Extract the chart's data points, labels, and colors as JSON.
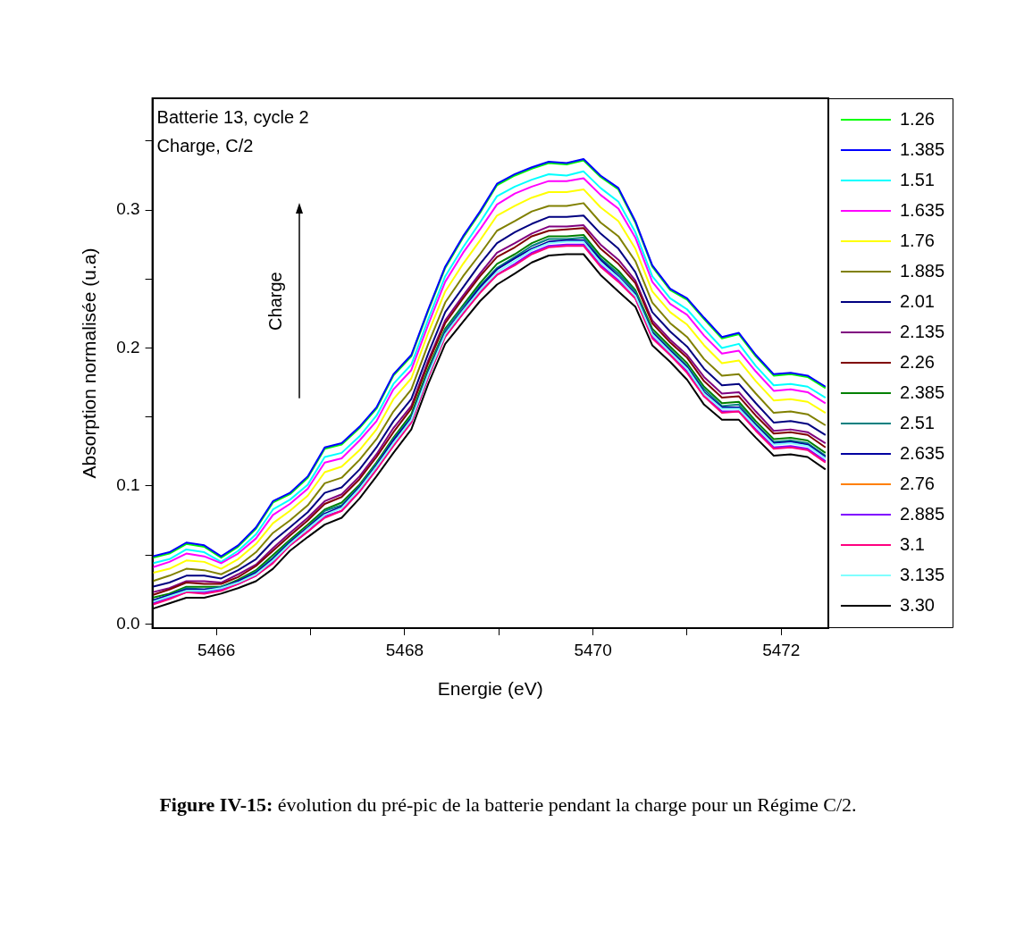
{
  "chart_data": {
    "type": "line",
    "xlabel": "Energie (eV)",
    "ylabel": "Absorption normalisée (u.a)",
    "annotations": [
      "Batterie 13, cycle 2",
      "Charge, C/2",
      "Charge",
      "Figure IV-15: évolution du pré-pic de la batterie pendant la charge pour un Régime C/2."
    ],
    "x": [
      5465.32,
      5465.5,
      5465.68,
      5465.87,
      5466.05,
      5466.23,
      5466.42,
      5466.6,
      5466.78,
      5466.97,
      5467.15,
      5467.33,
      5467.52,
      5467.7,
      5467.88,
      5468.07,
      5468.25,
      5468.43,
      5468.62,
      5468.8,
      5468.98,
      5469.17,
      5469.35,
      5469.53,
      5469.72,
      5469.9,
      5470.08,
      5470.27,
      5470.45,
      5470.63,
      5470.82,
      5471.0,
      5471.18,
      5471.37,
      5471.55,
      5471.73,
      5471.92,
      5472.1,
      5472.28,
      5472.47
    ],
    "xlim": [
      5465.32,
      5472.5
    ],
    "xticks": [
      5466,
      {
        "value": 5467,
        "label": null
      },
      5468,
      {
        "value": 5469,
        "label": null
      },
      5470,
      {
        "value": 5471,
        "label": null
      },
      5472
    ],
    "ylim": [
      -0.003,
      0.381
    ],
    "yticks": [
      {
        "value": 0,
        "label": "0.0"
      },
      {
        "value": 0.05,
        "label": null
      },
      0.1,
      {
        "value": 0.15,
        "label": null
      },
      0.2,
      {
        "value": 0.25,
        "label": null
      },
      0.3,
      {
        "value": 0.35,
        "label": null
      }
    ],
    "legend": "right",
    "marker": "none",
    "line_style": "solid",
    "series": [
      {
        "name": "1.26",
        "color": "#00ff00",
        "values": [
          0.048,
          0.051,
          0.058,
          0.056,
          0.048,
          0.056,
          0.069,
          0.088,
          0.094,
          0.106,
          0.127,
          0.13,
          0.142,
          0.156,
          0.18,
          0.194,
          0.227,
          0.258,
          0.28,
          0.298,
          0.318,
          0.325,
          0.33,
          0.334,
          0.333,
          0.336,
          0.324,
          0.315,
          0.291,
          0.259,
          0.242,
          0.235,
          0.221,
          0.207,
          0.21,
          0.194,
          0.18,
          0.181,
          0.179,
          0.171
        ]
      },
      {
        "name": "1.385",
        "color": "#0000ff",
        "values": [
          0.049,
          0.052,
          0.059,
          0.057,
          0.049,
          0.057,
          0.07,
          0.089,
          0.095,
          0.107,
          0.128,
          0.131,
          0.143,
          0.157,
          0.181,
          0.195,
          0.228,
          0.259,
          0.281,
          0.299,
          0.319,
          0.326,
          0.331,
          0.335,
          0.334,
          0.337,
          0.325,
          0.316,
          0.292,
          0.26,
          0.243,
          0.236,
          0.222,
          0.208,
          0.211,
          0.195,
          0.181,
          0.182,
          0.18,
          0.172
        ]
      },
      {
        "name": "1.51",
        "color": "#00ffff",
        "values": [
          0.044,
          0.047,
          0.054,
          0.052,
          0.045,
          0.053,
          0.065,
          0.083,
          0.09,
          0.101,
          0.121,
          0.124,
          0.136,
          0.151,
          0.174,
          0.188,
          0.221,
          0.252,
          0.273,
          0.291,
          0.31,
          0.317,
          0.322,
          0.326,
          0.325,
          0.328,
          0.316,
          0.306,
          0.284,
          0.252,
          0.236,
          0.228,
          0.214,
          0.2,
          0.203,
          0.187,
          0.173,
          0.174,
          0.172,
          0.164
        ]
      },
      {
        "name": "1.635",
        "color": "#ff00ff",
        "values": [
          0.041,
          0.045,
          0.051,
          0.049,
          0.044,
          0.051,
          0.062,
          0.079,
          0.087,
          0.098,
          0.117,
          0.12,
          0.133,
          0.147,
          0.17,
          0.184,
          0.217,
          0.248,
          0.269,
          0.286,
          0.304,
          0.312,
          0.317,
          0.321,
          0.321,
          0.323,
          0.311,
          0.301,
          0.28,
          0.248,
          0.232,
          0.224,
          0.209,
          0.196,
          0.198,
          0.183,
          0.169,
          0.17,
          0.168,
          0.16
        ]
      },
      {
        "name": "1.76",
        "color": "#ffff00",
        "values": [
          0.037,
          0.04,
          0.046,
          0.045,
          0.04,
          0.047,
          0.058,
          0.073,
          0.082,
          0.093,
          0.11,
          0.114,
          0.126,
          0.141,
          0.163,
          0.178,
          0.211,
          0.241,
          0.261,
          0.278,
          0.296,
          0.303,
          0.309,
          0.313,
          0.313,
          0.315,
          0.302,
          0.292,
          0.272,
          0.241,
          0.226,
          0.217,
          0.202,
          0.189,
          0.191,
          0.176,
          0.162,
          0.163,
          0.161,
          0.153
        ]
      },
      {
        "name": "1.885",
        "color": "#808000",
        "values": [
          0.031,
          0.035,
          0.04,
          0.039,
          0.036,
          0.042,
          0.052,
          0.066,
          0.075,
          0.086,
          0.102,
          0.106,
          0.119,
          0.134,
          0.154,
          0.17,
          0.203,
          0.233,
          0.252,
          0.268,
          0.285,
          0.292,
          0.299,
          0.303,
          0.303,
          0.305,
          0.291,
          0.281,
          0.263,
          0.233,
          0.218,
          0.208,
          0.192,
          0.18,
          0.181,
          0.167,
          0.153,
          0.154,
          0.152,
          0.144
        ]
      },
      {
        "name": "2.01",
        "color": "#000080",
        "values": [
          0.027,
          0.03,
          0.035,
          0.035,
          0.033,
          0.039,
          0.047,
          0.06,
          0.07,
          0.081,
          0.095,
          0.099,
          0.112,
          0.128,
          0.147,
          0.163,
          0.196,
          0.226,
          0.244,
          0.261,
          0.276,
          0.284,
          0.29,
          0.295,
          0.295,
          0.296,
          0.283,
          0.272,
          0.255,
          0.226,
          0.212,
          0.201,
          0.185,
          0.173,
          0.174,
          0.16,
          0.146,
          0.147,
          0.145,
          0.137
        ]
      },
      {
        "name": "2.135",
        "color": "#800080",
        "values": [
          0.023,
          0.026,
          0.031,
          0.031,
          0.03,
          0.036,
          0.043,
          0.055,
          0.066,
          0.077,
          0.089,
          0.094,
          0.107,
          0.123,
          0.142,
          0.158,
          0.191,
          0.22,
          0.238,
          0.254,
          0.269,
          0.276,
          0.283,
          0.288,
          0.288,
          0.289,
          0.275,
          0.264,
          0.249,
          0.22,
          0.206,
          0.195,
          0.179,
          0.167,
          0.168,
          0.154,
          0.14,
          0.141,
          0.139,
          0.131
        ]
      },
      {
        "name": "2.26",
        "color": "#800000",
        "values": [
          0.021,
          0.025,
          0.03,
          0.029,
          0.029,
          0.034,
          0.042,
          0.053,
          0.064,
          0.075,
          0.087,
          0.092,
          0.105,
          0.121,
          0.139,
          0.156,
          0.189,
          0.218,
          0.236,
          0.252,
          0.266,
          0.273,
          0.281,
          0.285,
          0.286,
          0.287,
          0.272,
          0.261,
          0.247,
          0.218,
          0.204,
          0.193,
          0.176,
          0.164,
          0.165,
          0.151,
          0.138,
          0.139,
          0.137,
          0.128
        ]
      },
      {
        "name": "2.385",
        "color": "#008000",
        "values": [
          0.019,
          0.022,
          0.027,
          0.027,
          0.027,
          0.032,
          0.039,
          0.05,
          0.061,
          0.072,
          0.083,
          0.088,
          0.101,
          0.117,
          0.135,
          0.152,
          0.185,
          0.214,
          0.231,
          0.247,
          0.261,
          0.268,
          0.276,
          0.281,
          0.281,
          0.282,
          0.267,
          0.256,
          0.242,
          0.214,
          0.201,
          0.189,
          0.172,
          0.16,
          0.161,
          0.147,
          0.134,
          0.135,
          0.133,
          0.124
        ]
      },
      {
        "name": "2.51",
        "color": "#008080",
        "values": [
          0.017,
          0.021,
          0.026,
          0.025,
          0.027,
          0.031,
          0.038,
          0.048,
          0.06,
          0.07,
          0.082,
          0.086,
          0.1,
          0.116,
          0.134,
          0.15,
          0.183,
          0.213,
          0.23,
          0.245,
          0.258,
          0.266,
          0.274,
          0.279,
          0.279,
          0.28,
          0.265,
          0.254,
          0.241,
          0.212,
          0.199,
          0.187,
          0.17,
          0.158,
          0.159,
          0.145,
          0.132,
          0.133,
          0.131,
          0.122
        ]
      },
      {
        "name": "2.635",
        "color": "#0000a0",
        "values": [
          0.017,
          0.021,
          0.025,
          0.025,
          0.026,
          0.031,
          0.037,
          0.047,
          0.059,
          0.07,
          0.08,
          0.085,
          0.099,
          0.115,
          0.133,
          0.149,
          0.182,
          0.211,
          0.228,
          0.244,
          0.257,
          0.265,
          0.272,
          0.277,
          0.278,
          0.278,
          0.264,
          0.252,
          0.239,
          0.211,
          0.198,
          0.186,
          0.168,
          0.157,
          0.157,
          0.144,
          0.131,
          0.132,
          0.13,
          0.121
        ]
      },
      {
        "name": "2.76",
        "color": "#ff8000",
        "values": [
          null,
          null,
          null,
          null,
          null,
          null,
          null,
          null,
          null,
          null,
          null,
          null,
          null,
          null,
          null,
          null,
          null,
          null,
          null,
          null,
          null,
          null,
          null,
          null,
          null,
          null,
          null,
          null,
          null,
          null,
          null,
          null,
          null,
          null,
          null,
          null,
          null,
          null,
          null,
          null
        ]
      },
      {
        "name": "2.885",
        "color": "#8000ff",
        "values": [
          0.015,
          0.019,
          0.023,
          0.023,
          0.025,
          0.029,
          0.035,
          0.045,
          0.057,
          0.067,
          0.078,
          0.082,
          0.096,
          0.112,
          0.13,
          0.146,
          0.179,
          0.209,
          0.225,
          0.241,
          0.253,
          0.261,
          0.269,
          0.274,
          0.275,
          0.275,
          0.26,
          0.249,
          0.236,
          0.208,
          0.195,
          0.183,
          0.165,
          0.154,
          0.154,
          0.141,
          0.128,
          0.129,
          0.127,
          0.118
        ]
      },
      {
        "name": "3.1",
        "color": "#ff0080",
        "values": [
          0.014,
          0.018,
          0.023,
          0.022,
          0.024,
          0.029,
          0.035,
          0.044,
          0.057,
          0.067,
          0.077,
          0.082,
          0.096,
          0.112,
          0.129,
          0.146,
          0.179,
          0.208,
          0.225,
          0.24,
          0.253,
          0.26,
          0.268,
          0.273,
          0.274,
          0.274,
          0.259,
          0.248,
          0.236,
          0.207,
          0.195,
          0.182,
          0.165,
          0.153,
          0.154,
          0.14,
          0.127,
          0.128,
          0.126,
          0.117
        ]
      },
      {
        "name": "3.135",
        "color": "#80ffff",
        "values": [
          0.016,
          0.02,
          0.024,
          0.024,
          0.026,
          0.03,
          0.036,
          0.046,
          0.058,
          0.069,
          0.079,
          0.084,
          0.098,
          0.114,
          0.131,
          0.148,
          0.181,
          0.21,
          0.227,
          0.242,
          0.255,
          0.263,
          0.271,
          0.276,
          0.277,
          0.277,
          0.262,
          0.251,
          0.238,
          0.21,
          0.197,
          0.185,
          0.167,
          0.156,
          0.156,
          0.143,
          0.13,
          0.131,
          0.129,
          0.12
        ]
      },
      {
        "name": "3.30",
        "color": "#000000",
        "values": [
          0.011,
          0.015,
          0.019,
          0.019,
          0.022,
          0.026,
          0.031,
          0.04,
          0.053,
          0.063,
          0.072,
          0.077,
          0.091,
          0.107,
          0.124,
          0.141,
          0.174,
          0.203,
          0.219,
          0.234,
          0.246,
          0.254,
          0.262,
          0.267,
          0.268,
          0.268,
          0.253,
          0.241,
          0.23,
          0.202,
          0.19,
          0.177,
          0.159,
          0.148,
          0.148,
          0.135,
          0.122,
          0.123,
          0.121,
          0.112
        ]
      }
    ]
  }
}
